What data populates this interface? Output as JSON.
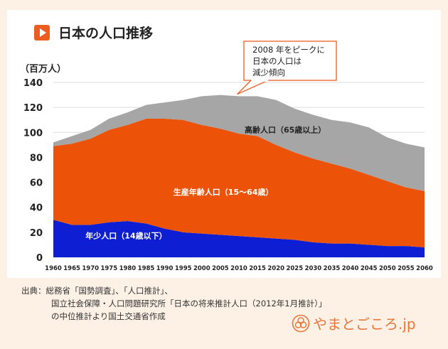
{
  "header": {
    "title": "日本の人口推移"
  },
  "chart_data": {
    "type": "area",
    "stacked": true,
    "x": [
      1960,
      1965,
      1970,
      1975,
      1980,
      1985,
      1990,
      1995,
      2000,
      2005,
      2010,
      2015,
      2020,
      2025,
      2030,
      2035,
      2040,
      2045,
      2050,
      2055,
      2060
    ],
    "series": [
      {
        "name": "年少人口（14歳以下）",
        "color": "#0e1fd3",
        "values": [
          30,
          26,
          26,
          28,
          29,
          27,
          23,
          20,
          19,
          18,
          17,
          16,
          15,
          14,
          12,
          11,
          11,
          10,
          9,
          9,
          8
        ]
      },
      {
        "name": "生産年齢人口（15〜64歳）",
        "color": "#ec5208",
        "values": [
          59,
          65,
          69,
          74,
          77,
          84,
          88,
          90,
          87,
          85,
          82,
          81,
          75,
          70,
          67,
          64,
          60,
          56,
          52,
          47,
          45
        ]
      },
      {
        "name": "高齢人口（65歳以上）",
        "color": "#a6a6a6",
        "values": [
          3,
          6,
          7,
          9,
          10,
          11,
          13,
          16,
          23,
          27,
          30,
          32,
          36,
          35,
          35,
          35,
          37,
          38,
          35,
          35,
          35
        ]
      }
    ],
    "ylabel": "（百万人）",
    "ylim": [
      0,
      140
    ],
    "yticks": [
      0,
      20,
      40,
      60,
      80,
      100,
      120,
      140
    ],
    "annotation": {
      "lines": [
        "2008 年をピークに",
        "日本の人口は",
        "減少傾向"
      ],
      "x": 2008
    },
    "grid": true
  },
  "source": {
    "lines": [
      "出典：総務省「国勢調査」、「人口推計」、",
      "国立社会保障・人口問題研究所「日本の将来推計人口（2012年1月推計）」",
      "の中位推計より国土交通省作成"
    ]
  },
  "brand": {
    "text": "やまとごころ.jp"
  }
}
